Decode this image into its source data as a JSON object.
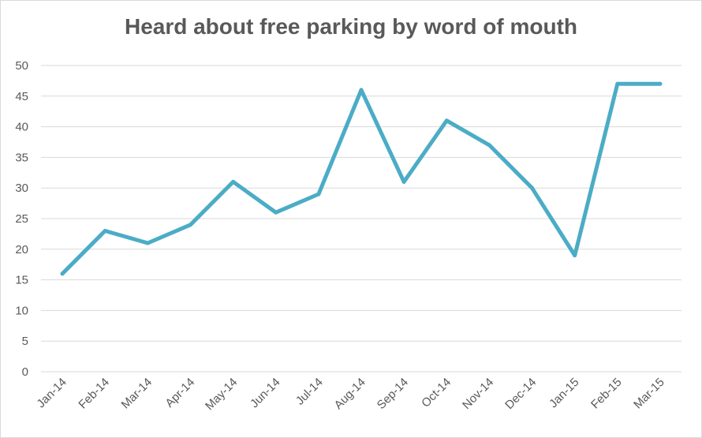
{
  "chart_data": {
    "type": "line",
    "title": "Heard about free parking by word of mouth",
    "xlabel": "",
    "ylabel": "",
    "categories": [
      "Jan-14",
      "Feb-14",
      "Mar-14",
      "Apr-14",
      "May-14",
      "Jun-14",
      "Jul-14",
      "Aug-14",
      "Sep-14",
      "Oct-14",
      "Nov-14",
      "Dec-14",
      "Jan-15",
      "Feb-15",
      "Mar-15"
    ],
    "series": [
      {
        "values": [
          16,
          23,
          21,
          24,
          31,
          26,
          29,
          46,
          31,
          41,
          37,
          30,
          19,
          47,
          47
        ]
      }
    ],
    "ylim": [
      0,
      50
    ],
    "yticks": [
      0,
      5,
      10,
      15,
      20,
      25,
      30,
      35,
      40,
      45,
      50
    ],
    "grid": true,
    "legend": "none",
    "colors": {
      "line": "#4bacc6",
      "grid": "#d9d9d9",
      "text": "#595959"
    }
  }
}
